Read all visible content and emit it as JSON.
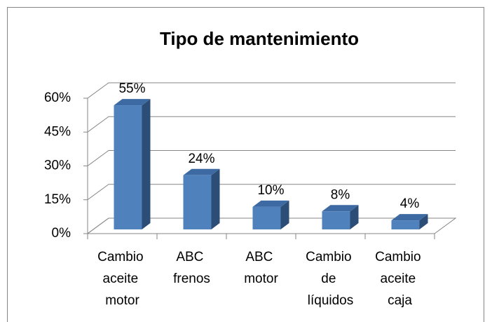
{
  "chart_data": {
    "type": "bar3d",
    "title": "Tipo de mantenimiento",
    "categories": [
      "Cambio aceite motor",
      "ABC frenos",
      "ABC motor",
      "Cambio de líquidos",
      "Cambio aceite caja"
    ],
    "values": [
      55,
      24,
      10,
      8,
      4
    ],
    "value_labels": [
      "55%",
      "24%",
      "10%",
      "8%",
      "4%"
    ],
    "color": "#4f81bd",
    "ylim": [
      0,
      60
    ],
    "yticks": [
      {
        "value": 0,
        "label": "0%"
      },
      {
        "value": 15,
        "label": "15%"
      },
      {
        "value": 30,
        "label": "30%"
      },
      {
        "value": 45,
        "label": "45%"
      },
      {
        "value": 60,
        "label": "60%"
      }
    ],
    "grid": true
  }
}
